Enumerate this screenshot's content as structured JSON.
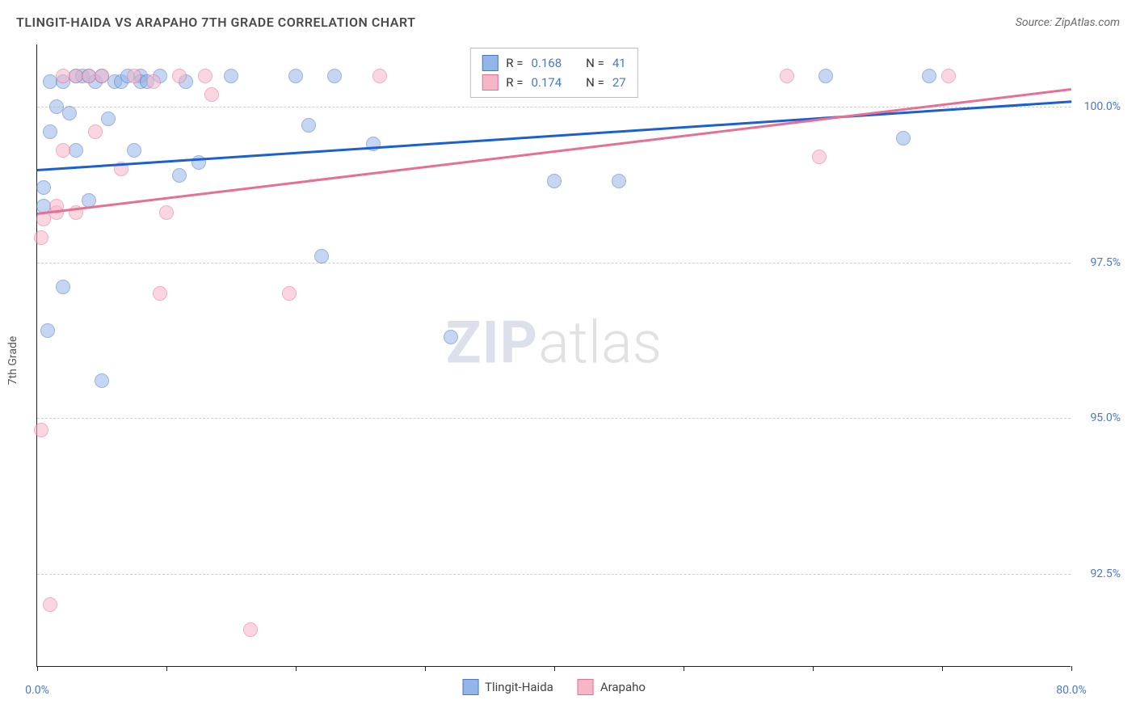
{
  "title": "TLINGIT-HAIDA VS ARAPAHO 7TH GRADE CORRELATION CHART",
  "source": "Source: ZipAtlas.com",
  "y_axis_label": "7th Grade",
  "watermark": {
    "part1": "ZIP",
    "part2": "atlas"
  },
  "chart": {
    "type": "scatter",
    "xlim": [
      0,
      80
    ],
    "ylim": [
      91,
      101
    ],
    "x_ticks": [
      0,
      10,
      20,
      30,
      40,
      50,
      60,
      70,
      80
    ],
    "x_tick_labels": {
      "0": "0.0%",
      "80": "80.0%"
    },
    "y_ticks": [
      92.5,
      95.0,
      97.5,
      100.0
    ],
    "y_tick_labels": [
      "92.5%",
      "95.0%",
      "97.5%",
      "100.0%"
    ],
    "background_color": "#ffffff",
    "grid_color": "#cfcfcf",
    "axis_color": "#222222",
    "tick_label_color": "#4a78c8",
    "point_radius": 9,
    "point_opacity": 0.55,
    "series": [
      {
        "name": "Tlingit-Haida",
        "fill_color": "#94b5e8",
        "stroke_color": "#4a78c8",
        "line_color": "#1b5fd0",
        "R": "0.168",
        "N": "41",
        "trend": {
          "x1": 0,
          "y1": 99.0,
          "x2": 80,
          "y2": 100.1
        },
        "points": [
          [
            0.5,
            98.7
          ],
          [
            0.5,
            98.4
          ],
          [
            0.8,
            96.4
          ],
          [
            1.0,
            99.6
          ],
          [
            1.0,
            100.4
          ],
          [
            1.5,
            100.0
          ],
          [
            2.0,
            97.1
          ],
          [
            2.0,
            100.4
          ],
          [
            2.5,
            99.9
          ],
          [
            3.0,
            99.3
          ],
          [
            3.0,
            100.5
          ],
          [
            3.5,
            100.5
          ],
          [
            4.0,
            98.5
          ],
          [
            4.0,
            100.5
          ],
          [
            4.5,
            100.4
          ],
          [
            5.0,
            95.6
          ],
          [
            5.0,
            100.5
          ],
          [
            5.5,
            99.8
          ],
          [
            6.0,
            100.4
          ],
          [
            6.5,
            100.4
          ],
          [
            7.0,
            100.5
          ],
          [
            7.5,
            99.3
          ],
          [
            8.0,
            100.5
          ],
          [
            8.0,
            100.4
          ],
          [
            8.5,
            100.4
          ],
          [
            9.5,
            100.5
          ],
          [
            11.0,
            98.9
          ],
          [
            11.5,
            100.4
          ],
          [
            12.5,
            99.1
          ],
          [
            15.0,
            100.5
          ],
          [
            20.0,
            100.5
          ],
          [
            21.0,
            99.7
          ],
          [
            22.0,
            97.6
          ],
          [
            23.0,
            100.5
          ],
          [
            26.0,
            99.4
          ],
          [
            32.0,
            96.3
          ],
          [
            40.0,
            98.8
          ],
          [
            45.0,
            98.8
          ],
          [
            61.0,
            100.5
          ],
          [
            67.0,
            99.5
          ],
          [
            69.0,
            100.5
          ]
        ]
      },
      {
        "name": "Arapaho",
        "fill_color": "#f5b6c8",
        "stroke_color": "#e76f94",
        "line_color": "#e76f94",
        "R": "0.174",
        "N": "27",
        "trend": {
          "x1": 0,
          "y1": 98.3,
          "x2": 80,
          "y2": 100.3
        },
        "points": [
          [
            0.3,
            94.8
          ],
          [
            0.3,
            97.9
          ],
          [
            0.5,
            98.2
          ],
          [
            1.0,
            92.0
          ],
          [
            1.5,
            98.3
          ],
          [
            1.5,
            98.4
          ],
          [
            2.0,
            99.3
          ],
          [
            2.0,
            100.5
          ],
          [
            3.0,
            98.3
          ],
          [
            3.0,
            100.5
          ],
          [
            4.0,
            100.5
          ],
          [
            4.5,
            99.6
          ],
          [
            5.0,
            100.5
          ],
          [
            6.5,
            99.0
          ],
          [
            7.5,
            100.5
          ],
          [
            9.0,
            100.4
          ],
          [
            9.5,
            97.0
          ],
          [
            10.0,
            98.3
          ],
          [
            11.0,
            100.5
          ],
          [
            13.0,
            100.5
          ],
          [
            13.5,
            100.2
          ],
          [
            16.5,
            91.6
          ],
          [
            19.5,
            97.0
          ],
          [
            26.5,
            100.5
          ],
          [
            58.0,
            100.5
          ],
          [
            60.5,
            99.2
          ],
          [
            70.5,
            100.5
          ]
        ]
      }
    ]
  },
  "legend_top": {
    "R_label": "R =",
    "N_label": "N ="
  },
  "legend_bottom": [
    {
      "label": "Tlingit-Haida",
      "fill": "#94b5e8",
      "stroke": "#4a78c8"
    },
    {
      "label": "Arapaho",
      "fill": "#f5b6c8",
      "stroke": "#e76f94"
    }
  ]
}
